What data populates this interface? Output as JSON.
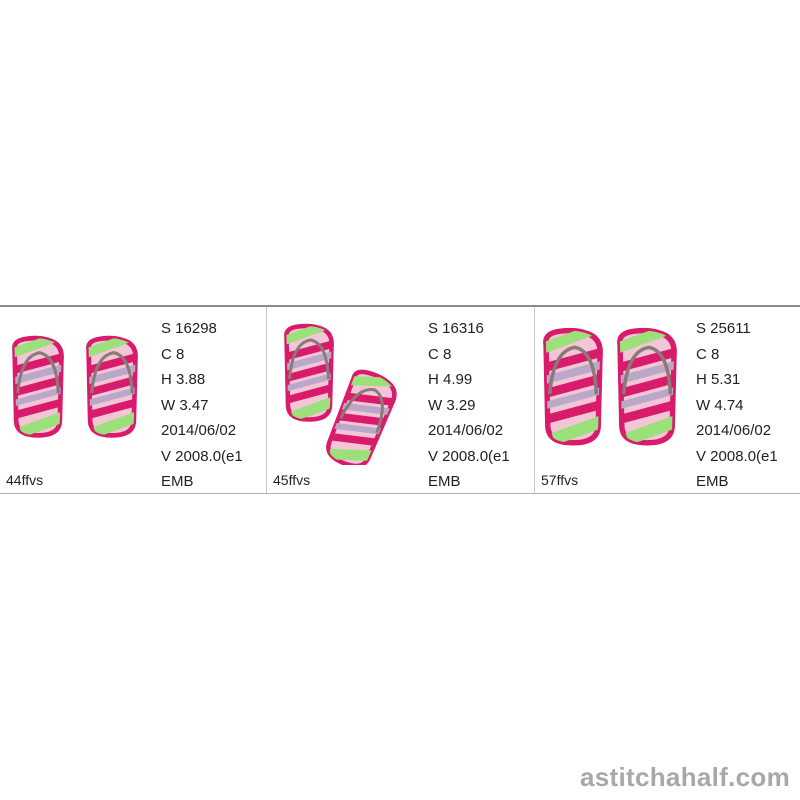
{
  "designs": [
    {
      "name": "44ffvs",
      "stitches": "S  16298",
      "colors": "C  8",
      "height": "H  3.88",
      "width": "W  3.47",
      "date": "2014/06/02",
      "version": "V  2008.0(e1",
      "format": "EMB",
      "layout": "upright"
    },
    {
      "name": "45ffvs",
      "stitches": "S  16316",
      "colors": "C  8",
      "height": "H  4.99",
      "width": "W  3.29",
      "date": "2014/06/02",
      "version": "V  2008.0(e1",
      "format": "EMB",
      "layout": "tilted"
    },
    {
      "name": "57ffvs",
      "stitches": "S  25611",
      "colors": "C  8",
      "height": "H  5.31",
      "width": "W  4.74",
      "date": "2014/06/02",
      "version": "V  2008.0(e1",
      "format": "EMB",
      "layout": "upright"
    }
  ],
  "watermark": "astitchahalf.com",
  "colors": {
    "pink": "#d81b6a",
    "green": "#9be07a",
    "lilac": "#b9a8c8",
    "strap": "#8a7a78"
  }
}
